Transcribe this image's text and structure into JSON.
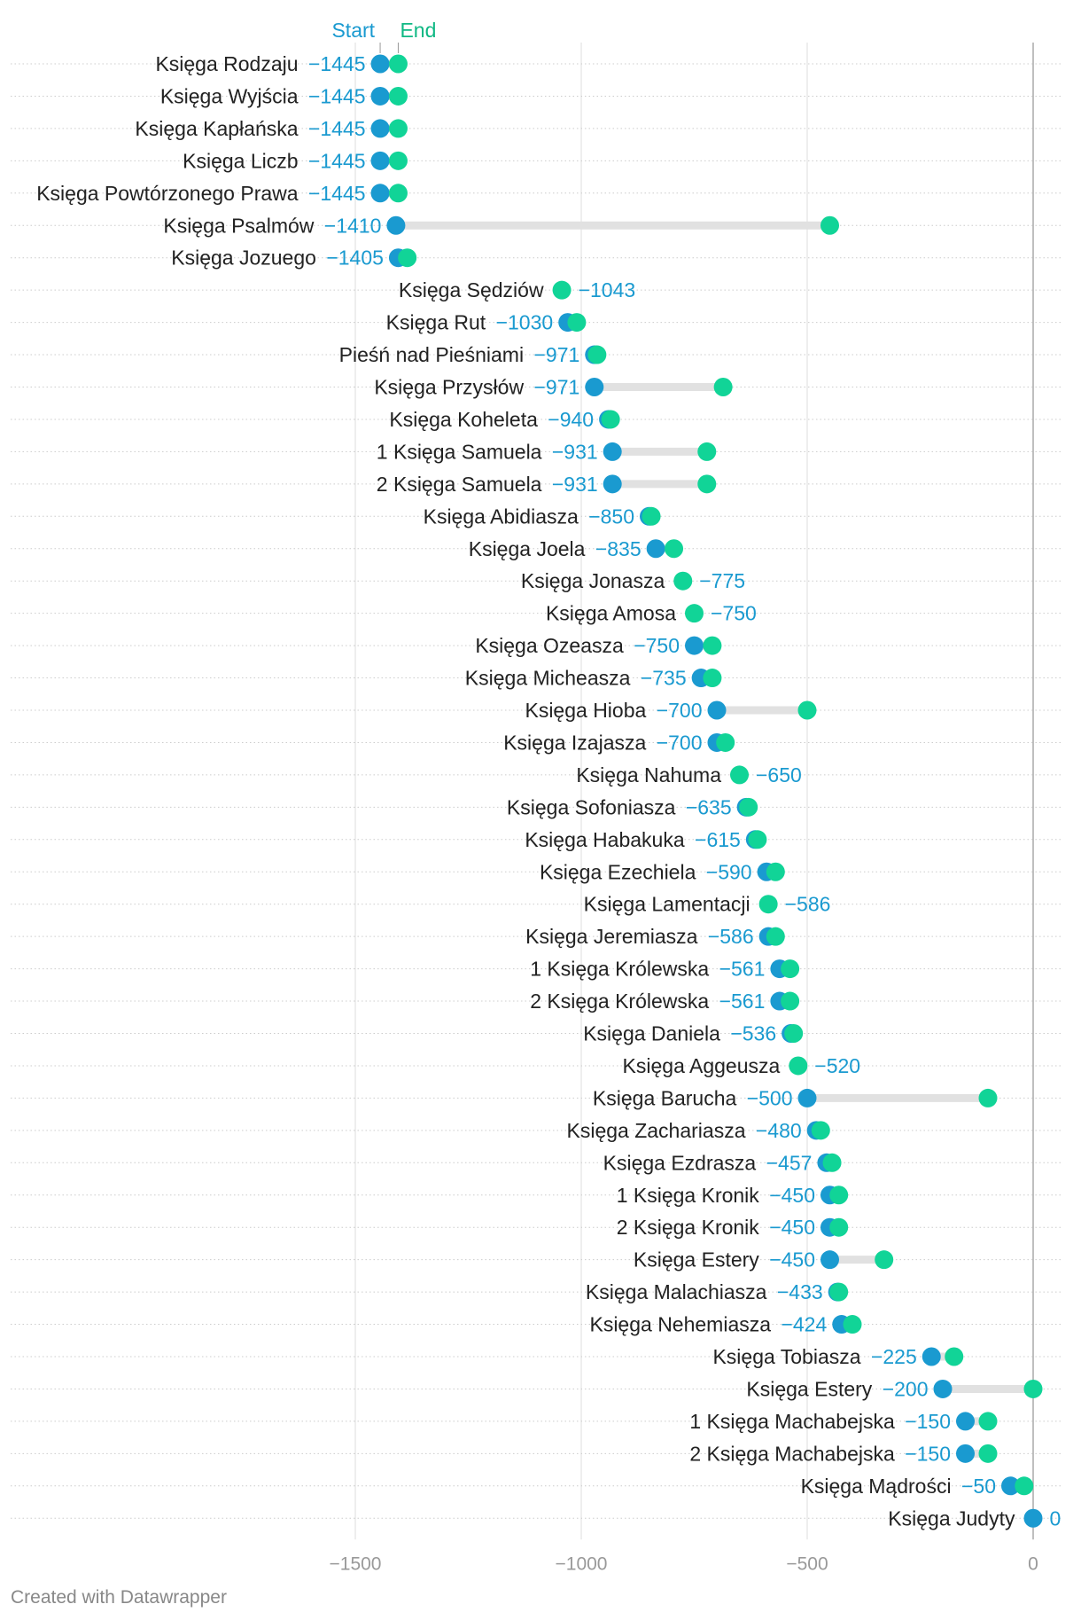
{
  "chart_data": {
    "type": "dot-range",
    "legend": {
      "start": "Start",
      "end": "End"
    },
    "colors": {
      "start": "#1a9ad0",
      "end": "#11d497",
      "connector": "#e1e1e1",
      "grid": "#dddddd",
      "zero_line": "#aaaaaa"
    },
    "xlim": [
      -1600,
      0
    ],
    "xticks": [
      -1500,
      -1000,
      -500,
      0
    ],
    "xtick_labels": [
      "−1500",
      "−1000",
      "−500",
      "0"
    ],
    "rows": [
      {
        "label": "Księga Rodzaju",
        "start": -1445,
        "end": -1405,
        "value_label": "−1445"
      },
      {
        "label": "Księga Wyjścia",
        "start": -1445,
        "end": -1405,
        "value_label": "−1445"
      },
      {
        "label": "Księga Kapłańska",
        "start": -1445,
        "end": -1405,
        "value_label": "−1445"
      },
      {
        "label": "Księga Liczb",
        "start": -1445,
        "end": -1405,
        "value_label": "−1445"
      },
      {
        "label": "Księga Powtórzonego Prawa",
        "start": -1445,
        "end": -1405,
        "value_label": "−1445"
      },
      {
        "label": "Księga Psalmów",
        "start": -1410,
        "end": -450,
        "value_label": "−1410"
      },
      {
        "label": "Księga Jozuego",
        "start": -1405,
        "end": -1385,
        "value_label": "−1405"
      },
      {
        "label": "Księga Sędziów",
        "start": -1043,
        "end": -1043,
        "value_label": "−1043"
      },
      {
        "label": "Księga Rut",
        "start": -1030,
        "end": -1010,
        "value_label": "−1030"
      },
      {
        "label": "Pieśń nad Pieśniami",
        "start": -971,
        "end": -965,
        "value_label": "−971"
      },
      {
        "label": "Księga Przysłów",
        "start": -971,
        "end": -686,
        "value_label": "−971"
      },
      {
        "label": "Księga Koheleta",
        "start": -940,
        "end": -935,
        "value_label": "−940"
      },
      {
        "label": "1 Księga Samuela",
        "start": -931,
        "end": -722,
        "value_label": "−931"
      },
      {
        "label": "2 Księga Samuela",
        "start": -931,
        "end": -722,
        "value_label": "−931"
      },
      {
        "label": "Księga Abidiasza",
        "start": -850,
        "end": -845,
        "value_label": "−850"
      },
      {
        "label": "Księga Joela",
        "start": -835,
        "end": -795,
        "value_label": "−835"
      },
      {
        "label": "Księga Jonasza",
        "start": -775,
        "end": -775,
        "value_label": "−775"
      },
      {
        "label": "Księga Amosa",
        "start": -750,
        "end": -750,
        "value_label": "−750"
      },
      {
        "label": "Księga Ozeasza",
        "start": -750,
        "end": -710,
        "value_label": "−750"
      },
      {
        "label": "Księga Micheasza",
        "start": -735,
        "end": -710,
        "value_label": "−735"
      },
      {
        "label": "Księga Hioba",
        "start": -700,
        "end": -500,
        "value_label": "−700"
      },
      {
        "label": "Księga Izajasza",
        "start": -700,
        "end": -681,
        "value_label": "−700"
      },
      {
        "label": "Księga Nahuma",
        "start": -650,
        "end": -650,
        "value_label": "−650"
      },
      {
        "label": "Księga Sofoniasza",
        "start": -635,
        "end": -630,
        "value_label": "−635"
      },
      {
        "label": "Księga Habakuka",
        "start": -615,
        "end": -610,
        "value_label": "−615"
      },
      {
        "label": "Księga Ezechiela",
        "start": -590,
        "end": -570,
        "value_label": "−590"
      },
      {
        "label": "Księga Lamentacji",
        "start": -586,
        "end": -586,
        "value_label": "−586"
      },
      {
        "label": "Księga Jeremiasza",
        "start": -586,
        "end": -570,
        "value_label": "−586"
      },
      {
        "label": "1 Księga Królewska",
        "start": -561,
        "end": -538,
        "value_label": "−561"
      },
      {
        "label": "2 Księga Królewska",
        "start": -561,
        "end": -538,
        "value_label": "−561"
      },
      {
        "label": "Księga Daniela",
        "start": -536,
        "end": -530,
        "value_label": "−536"
      },
      {
        "label": "Księga Aggeusza",
        "start": -520,
        "end": -520,
        "value_label": "−520"
      },
      {
        "label": "Księga Barucha",
        "start": -500,
        "end": -100,
        "value_label": "−500"
      },
      {
        "label": "Księga Zachariasza",
        "start": -480,
        "end": -470,
        "value_label": "−480"
      },
      {
        "label": "Księga Ezdrasza",
        "start": -457,
        "end": -445,
        "value_label": "−457"
      },
      {
        "label": "1 Księga Kronik",
        "start": -450,
        "end": -430,
        "value_label": "−450"
      },
      {
        "label": "2 Księga Kronik",
        "start": -450,
        "end": -430,
        "value_label": "−450"
      },
      {
        "label": "Księga Estery",
        "start": -450,
        "end": -330,
        "value_label": "−450"
      },
      {
        "label": "Księga Malachiasza",
        "start": -433,
        "end": -430,
        "value_label": "−433"
      },
      {
        "label": "Księga Nehemiasza",
        "start": -424,
        "end": -400,
        "value_label": "−424"
      },
      {
        "label": "Księga Tobiasza",
        "start": -225,
        "end": -175,
        "value_label": "−225"
      },
      {
        "label": "Księga Estery",
        "start": -200,
        "end": 0,
        "value_label": "−200"
      },
      {
        "label": "1 Księga Machabejska",
        "start": -150,
        "end": -100,
        "value_label": "−150"
      },
      {
        "label": "2 Księga Machabejska",
        "start": -150,
        "end": -100,
        "value_label": "−150"
      },
      {
        "label": "Księga Mądrości",
        "start": -50,
        "end": -20,
        "value_label": "−50"
      },
      {
        "label": "Księga Judyty",
        "start": 0,
        "end": 0,
        "value_label": "0"
      }
    ]
  },
  "footer": {
    "credit": "Created with Datawrapper"
  }
}
